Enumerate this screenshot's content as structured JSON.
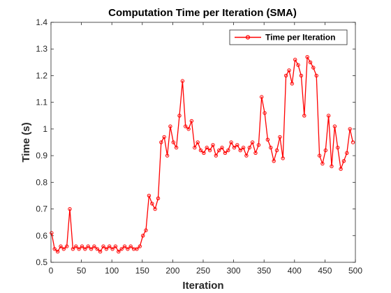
{
  "chart_data": {
    "type": "line",
    "title": "Computation Time per Iteration (SMA)",
    "xlabel": "Iteration",
    "ylabel": "Time (s)",
    "xlim": [
      0,
      500
    ],
    "ylim": [
      0.5,
      1.4
    ],
    "xticks": [
      0,
      50,
      100,
      150,
      200,
      250,
      300,
      350,
      400,
      450,
      500
    ],
    "yticks": [
      0.5,
      0.6,
      0.7,
      0.8,
      0.9,
      1.0,
      1.1,
      1.2,
      1.3,
      1.4
    ],
    "ytick_labels": [
      "0.5",
      "0.6",
      "0.7",
      "0.8",
      "0.9",
      "1",
      "1.1",
      "1.2",
      "1.3",
      "1.4"
    ],
    "grid": false,
    "legend_position": "top-right",
    "series": [
      {
        "name": "Time per Iteration",
        "color": "#ff0000",
        "marker": "circle",
        "x_start": 1,
        "x_step": 5,
        "values": [
          0.61,
          0.55,
          0.54,
          0.56,
          0.55,
          0.56,
          0.7,
          0.55,
          0.56,
          0.55,
          0.56,
          0.55,
          0.56,
          0.55,
          0.56,
          0.55,
          0.54,
          0.56,
          0.55,
          0.56,
          0.55,
          0.56,
          0.54,
          0.55,
          0.56,
          0.55,
          0.56,
          0.55,
          0.55,
          0.56,
          0.6,
          0.62,
          0.75,
          0.72,
          0.7,
          0.74,
          0.95,
          0.97,
          0.9,
          1.01,
          0.95,
          0.93,
          1.05,
          1.18,
          1.01,
          1.0,
          1.03,
          0.93,
          0.95,
          0.92,
          0.91,
          0.93,
          0.92,
          0.94,
          0.9,
          0.92,
          0.93,
          0.91,
          0.92,
          0.95,
          0.93,
          0.94,
          0.92,
          0.93,
          0.9,
          0.93,
          0.95,
          0.91,
          0.94,
          1.12,
          1.06,
          0.96,
          0.93,
          0.88,
          0.92,
          0.97,
          0.89,
          1.2,
          1.22,
          1.17,
          1.26,
          1.24,
          1.2,
          1.05,
          1.27,
          1.25,
          1.23,
          1.2,
          0.9,
          0.87,
          0.92,
          1.05,
          0.86,
          1.01,
          0.93,
          0.85,
          0.88,
          0.91,
          1.0,
          0.95
        ]
      }
    ]
  }
}
